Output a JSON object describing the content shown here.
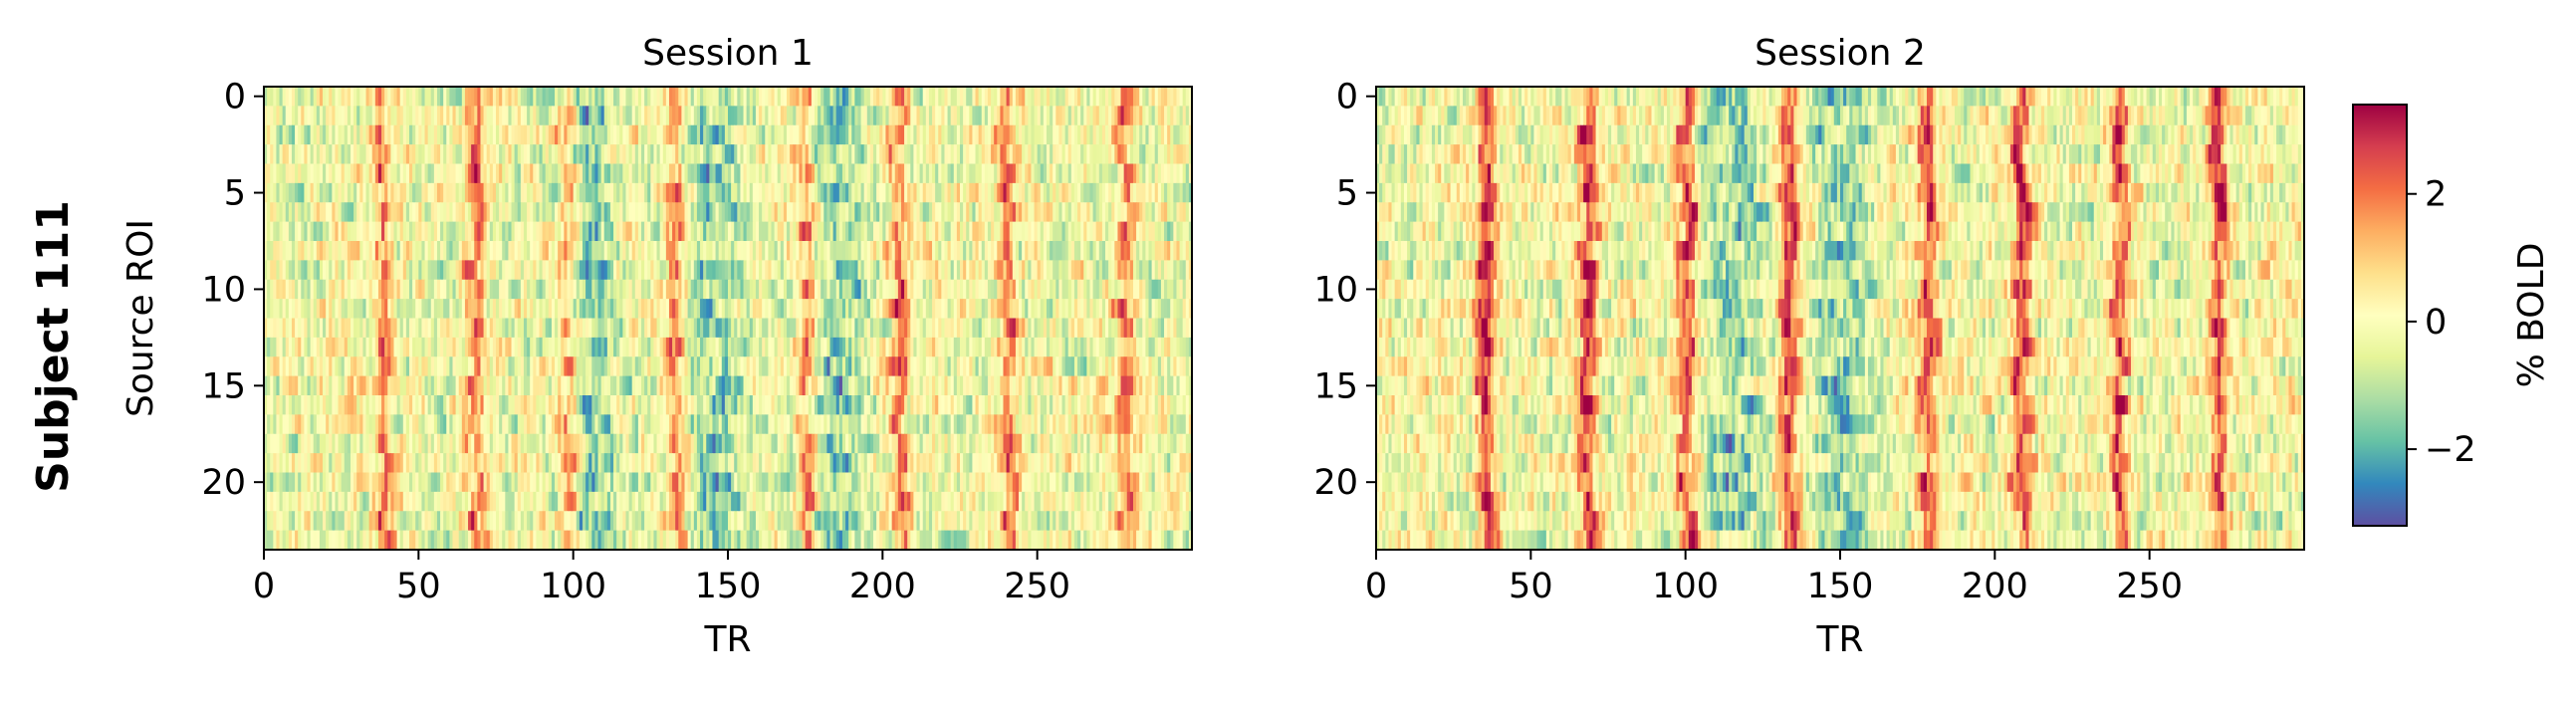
{
  "figure": {
    "row_label": "Subject 111"
  },
  "colormap": {
    "name": "Spectral_r",
    "stops": [
      "#5e4fa2",
      "#3288bd",
      "#66c2a5",
      "#abdda4",
      "#e6f598",
      "#ffffbf",
      "#fee08b",
      "#fdae61",
      "#f46d43",
      "#d53e4f",
      "#9e0142"
    ]
  },
  "chart_data": [
    {
      "type": "heatmap",
      "title": "Session 1",
      "xlabel": "TR",
      "ylabel": "Source ROI",
      "x_ticks": [
        "0",
        "50",
        "100",
        "150",
        "200",
        "250"
      ],
      "y_ticks": [
        "0",
        "5",
        "10",
        "15",
        "20"
      ],
      "xlim": [
        0,
        300
      ],
      "ylim": [
        0,
        24
      ],
      "n_rois": 24,
      "n_trs": 300,
      "prominent_peak_trs": [
        38,
        68,
        98,
        133,
        175,
        205,
        240,
        278
      ],
      "trough_trs": [
        105,
        145,
        185
      ]
    },
    {
      "type": "heatmap",
      "title": "Session 2",
      "xlabel": "TR",
      "ylabel": "",
      "x_ticks": [
        "0",
        "50",
        "100",
        "150",
        "200",
        "250"
      ],
      "y_ticks": [
        "0",
        "5",
        "10",
        "15",
        "20"
      ],
      "xlim": [
        0,
        300
      ],
      "ylim": [
        0,
        24
      ],
      "n_rois": 24,
      "n_trs": 300,
      "prominent_peak_trs": [
        35,
        68,
        100,
        133,
        178,
        208,
        240,
        272
      ],
      "trough_trs": [
        115,
        150
      ]
    }
  ],
  "colorbar": {
    "label": "% BOLD",
    "vmin": -3.2,
    "vmax": 3.4,
    "ticks": [
      "−2",
      "0",
      "2"
    ],
    "tick_values": [
      -2,
      0,
      2
    ]
  }
}
